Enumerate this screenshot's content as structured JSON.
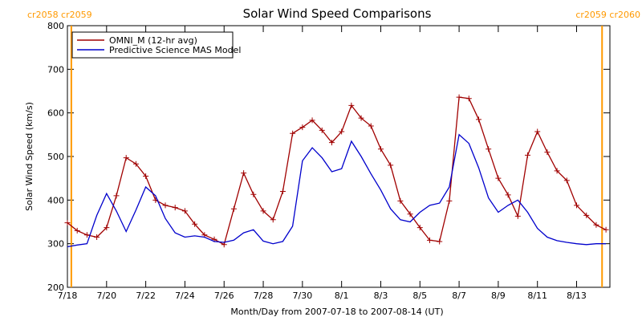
{
  "chart_data": {
    "type": "line",
    "title": "Solar Wind Speed Comparisons",
    "xlabel": "Month/Day from 2007-07-18 to 2007-08-14 (UT)",
    "ylabel": "Solar Wind Speed (km/s)",
    "x": [
      0,
      0.5,
      1,
      1.5,
      2,
      2.5,
      3,
      3.5,
      4,
      4.5,
      5,
      5.5,
      6,
      6.5,
      7,
      7.5,
      8,
      8.5,
      9,
      9.5,
      10,
      10.5,
      11,
      11.5,
      12,
      12.5,
      13,
      13.5,
      14,
      14.5,
      15,
      15.5,
      16,
      16.5,
      17,
      17.5,
      18,
      18.5,
      19,
      19.5,
      20,
      20.5,
      21,
      21.5,
      22,
      22.5,
      23,
      23.5,
      24,
      24.5,
      25,
      25.5,
      26,
      26.5,
      27,
      27.5
    ],
    "series": [
      {
        "name": "OMNI_M (12-hr avg)",
        "color": "#a00000",
        "marker": "plus",
        "values": [
          348,
          330,
          320,
          315,
          337,
          410,
          497,
          483,
          455,
          400,
          388,
          383,
          375,
          345,
          320,
          310,
          298,
          380,
          462,
          413,
          375,
          355,
          420,
          553,
          567,
          583,
          560,
          532,
          557,
          617,
          588,
          570,
          517,
          480,
          398,
          368,
          337,
          308,
          305,
          398,
          636,
          633,
          585,
          517,
          450,
          412,
          363,
          503,
          557,
          510,
          467,
          445,
          388,
          365,
          343,
          332
        ]
      },
      {
        "name": "Predictive Science MAS Model",
        "color": "#0000cc",
        "marker": "none",
        "values": [
          293,
          297,
          300,
          365,
          415,
          375,
          328,
          377,
          430,
          410,
          358,
          325,
          315,
          318,
          315,
          305,
          303,
          308,
          325,
          332,
          306,
          300,
          305,
          340,
          490,
          520,
          497,
          465,
          472,
          535,
          500,
          460,
          423,
          380,
          355,
          350,
          372,
          388,
          393,
          430,
          550,
          530,
          474,
          405,
          372,
          388,
          400,
          372,
          335,
          315,
          307,
          303,
          300,
          298,
          300,
          300
        ]
      }
    ],
    "xlim": [
      0,
      27.7
    ],
    "xticks": [
      {
        "value": 0,
        "label": "7/18"
      },
      {
        "value": 2,
        "label": "7/20"
      },
      {
        "value": 4,
        "label": "7/22"
      },
      {
        "value": 6,
        "label": "7/24"
      },
      {
        "value": 8,
        "label": "7/26"
      },
      {
        "value": 10,
        "label": "7/28"
      },
      {
        "value": 12,
        "label": "7/30"
      },
      {
        "value": 14,
        "label": "8/1"
      },
      {
        "value": 16,
        "label": "8/3"
      },
      {
        "value": 18,
        "label": "8/5"
      },
      {
        "value": 20,
        "label": "8/7"
      },
      {
        "value": 22,
        "label": "8/9"
      },
      {
        "value": 24,
        "label": "8/11"
      },
      {
        "value": 26,
        "label": "8/13"
      }
    ],
    "ylim": [
      200,
      800
    ],
    "yticks": [
      200,
      300,
      400,
      500,
      600,
      700,
      800
    ],
    "legend": "upper-left",
    "markers": [
      {
        "x": 0.2,
        "label": "cr2058 cr2059",
        "color": "#ff9900"
      },
      {
        "x": 27.3,
        "label": "cr2059 cr2060",
        "color": "#ff9900"
      }
    ]
  }
}
